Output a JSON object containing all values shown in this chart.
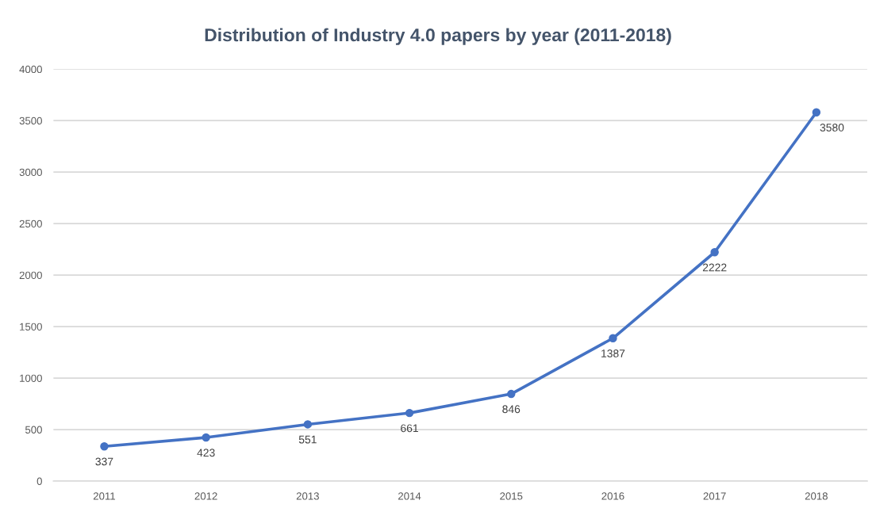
{
  "chart_data": {
    "type": "line",
    "title": "Distribution of Industry 4.0 papers by year (2011-2018)",
    "categories": [
      "2011",
      "2012",
      "2013",
      "2014",
      "2015",
      "2016",
      "2017",
      "2018"
    ],
    "series": [
      {
        "color": "#4472c4",
        "values": [
          337,
          423,
          551,
          661,
          846,
          1387,
          2222,
          3580
        ]
      }
    ],
    "ylim": [
      0,
      4000
    ],
    "yticks": [
      0,
      500,
      1000,
      1500,
      2000,
      2500,
      3000,
      3500,
      4000
    ],
    "grid": "y",
    "marker": "circle",
    "line_style": "solid",
    "data_labels": true
  }
}
